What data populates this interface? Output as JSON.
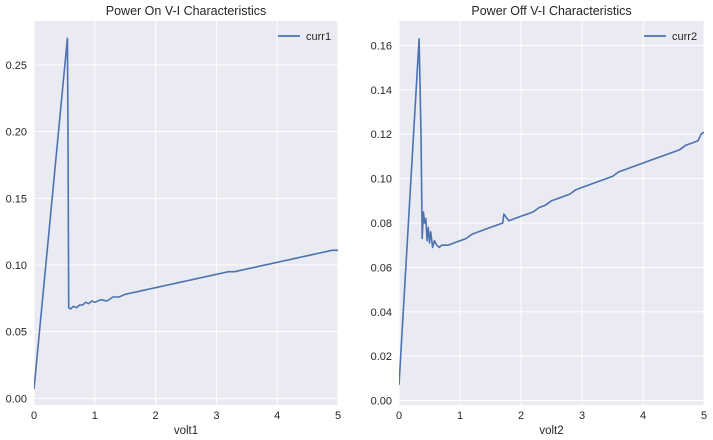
{
  "chart_data": [
    {
      "type": "line",
      "title": "Power On V-I Characteristics",
      "xlabel": "volt1",
      "ylabel": "",
      "xlim": [
        0,
        5
      ],
      "ylim": [
        -0.005,
        0.283
      ],
      "xticks": [
        0,
        1,
        2,
        3,
        4,
        5
      ],
      "xtick_labels": [
        "0",
        "1",
        "2",
        "3",
        "4",
        "5"
      ],
      "yticks": [
        0.0,
        0.05,
        0.1,
        0.15,
        0.2,
        0.25
      ],
      "ytick_labels": [
        "0.00",
        "0.05",
        "0.10",
        "0.15",
        "0.20",
        "0.25"
      ],
      "grid": true,
      "legend": "top-right",
      "series": [
        {
          "name": "curr1",
          "color": "#4c72b0",
          "x": [
            0.0,
            0.55,
            0.56,
            0.57,
            0.6,
            0.65,
            0.7,
            0.75,
            0.8,
            0.85,
            0.9,
            0.95,
            1.0,
            1.1,
            1.2,
            1.3,
            1.4,
            1.5,
            1.6,
            1.7,
            1.8,
            1.9,
            2.0,
            2.1,
            2.2,
            2.3,
            2.4,
            2.5,
            2.6,
            2.7,
            2.8,
            2.9,
            3.0,
            3.1,
            3.2,
            3.3,
            3.4,
            3.5,
            3.6,
            3.7,
            3.8,
            3.9,
            4.0,
            4.1,
            4.2,
            4.3,
            4.4,
            4.5,
            4.6,
            4.7,
            4.8,
            4.9,
            5.0
          ],
          "y": [
            0.007,
            0.27,
            0.2,
            0.068,
            0.067,
            0.069,
            0.068,
            0.07,
            0.07,
            0.072,
            0.071,
            0.073,
            0.072,
            0.074,
            0.073,
            0.076,
            0.076,
            0.078,
            0.079,
            0.08,
            0.081,
            0.082,
            0.083,
            0.084,
            0.085,
            0.086,
            0.087,
            0.088,
            0.089,
            0.09,
            0.091,
            0.092,
            0.093,
            0.094,
            0.095,
            0.095,
            0.096,
            0.097,
            0.098,
            0.099,
            0.1,
            0.101,
            0.102,
            0.103,
            0.104,
            0.105,
            0.106,
            0.107,
            0.108,
            0.109,
            0.11,
            0.111,
            0.111
          ]
        }
      ]
    },
    {
      "type": "line",
      "title": "Power Off V-I Characteristics",
      "xlabel": "volt2",
      "ylabel": "",
      "xlim": [
        0,
        5
      ],
      "ylim": [
        -0.002,
        0.171
      ],
      "xticks": [
        0,
        1,
        2,
        3,
        4,
        5
      ],
      "xtick_labels": [
        "0",
        "1",
        "2",
        "3",
        "4",
        "5"
      ],
      "yticks": [
        0.0,
        0.02,
        0.04,
        0.06,
        0.08,
        0.1,
        0.12,
        0.14,
        0.16
      ],
      "ytick_labels": [
        "0.00",
        "0.02",
        "0.04",
        "0.06",
        "0.08",
        "0.10",
        "0.12",
        "0.14",
        "0.16"
      ],
      "grid": true,
      "legend": "top-right",
      "series": [
        {
          "name": "curr2",
          "color": "#4c72b0",
          "x": [
            0.0,
            0.33,
            0.36,
            0.38,
            0.4,
            0.42,
            0.44,
            0.46,
            0.48,
            0.5,
            0.52,
            0.55,
            0.58,
            0.62,
            0.66,
            0.7,
            0.8,
            0.9,
            1.0,
            1.1,
            1.2,
            1.3,
            1.4,
            1.5,
            1.6,
            1.7,
            1.72,
            1.8,
            1.9,
            2.0,
            2.1,
            2.2,
            2.3,
            2.4,
            2.5,
            2.6,
            2.7,
            2.8,
            2.9,
            3.0,
            3.1,
            3.2,
            3.3,
            3.4,
            3.5,
            3.6,
            3.7,
            3.8,
            3.9,
            4.0,
            4.1,
            4.2,
            4.3,
            4.4,
            4.5,
            4.6,
            4.7,
            4.8,
            4.9,
            4.95,
            5.0
          ],
          "y": [
            0.007,
            0.163,
            0.12,
            0.073,
            0.085,
            0.08,
            0.082,
            0.072,
            0.078,
            0.071,
            0.076,
            0.069,
            0.072,
            0.07,
            0.069,
            0.07,
            0.07,
            0.071,
            0.072,
            0.073,
            0.075,
            0.076,
            0.077,
            0.078,
            0.079,
            0.08,
            0.084,
            0.081,
            0.082,
            0.083,
            0.084,
            0.085,
            0.087,
            0.088,
            0.09,
            0.091,
            0.092,
            0.093,
            0.095,
            0.096,
            0.097,
            0.098,
            0.099,
            0.1,
            0.101,
            0.103,
            0.104,
            0.105,
            0.106,
            0.107,
            0.108,
            0.109,
            0.11,
            0.111,
            0.112,
            0.113,
            0.115,
            0.116,
            0.117,
            0.12,
            0.121
          ]
        }
      ]
    }
  ]
}
